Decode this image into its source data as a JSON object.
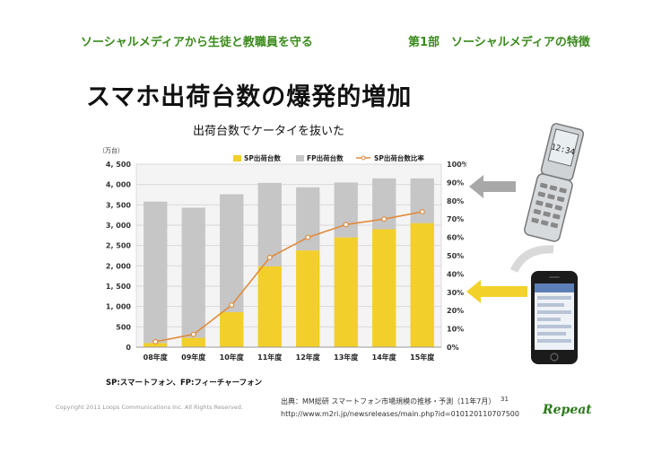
{
  "header": {
    "left": "ソーシャルメディアから生徒と教職員を守る",
    "right": "第1部　ソーシャルメディアの特徴"
  },
  "title": "スマホ出荷台数の爆発的増加",
  "subtitle": "出荷台数でケータイを抜いた",
  "footnote": "SP:スマートフォン、FP:フィーチャーフォン",
  "copyright": "Copyright 2011 Loops Communications Inc. All Rights Reserved.",
  "source_line1": "出典：MM総研 スマートフォン市場規模の推移・予測（11年7月）",
  "source_line2": "http://www.m2ri.jp/newsreleases/main.php?id=010120110707500",
  "page_number": "31",
  "logo_text": "Repeat",
  "flip_phone_clock": "12:34",
  "colors": {
    "header_green": "#3a8a1c",
    "sp_bar": "#f2cf2a",
    "fp_bar": "#c6c6c6",
    "ratio_line": "#e08a3c",
    "arrow_gray": "#a8a8a8",
    "arrow_yellow": "#f2d22a"
  },
  "chart_data": {
    "type": "bar",
    "stacked": true,
    "y_unit_label": "（万台）",
    "categories": [
      "08年度",
      "09年度",
      "10年度",
      "11年度",
      "12年度",
      "13年度",
      "14年度",
      "15年度"
    ],
    "series": [
      {
        "name": "SP出荷台数",
        "type": "bar",
        "axis": "left",
        "values": [
          100,
          230,
          860,
          1990,
          2380,
          2700,
          2900,
          3050
        ]
      },
      {
        "name": "FP出荷台数",
        "type": "bar",
        "axis": "left",
        "values": [
          3480,
          3200,
          2900,
          2050,
          1550,
          1350,
          1250,
          1100
        ]
      },
      {
        "name": "SP出荷台数比率",
        "type": "line",
        "axis": "right",
        "values": [
          3,
          7,
          23,
          49,
          60,
          67,
          70,
          74
        ]
      }
    ],
    "left_axis": {
      "ylim": [
        0,
        4500
      ],
      "ticks": [
        "0",
        "500",
        "1, 000",
        "1, 500",
        "2, 000",
        "2, 500",
        "3, 000",
        "3, 500",
        "4, 000",
        "4, 500"
      ]
    },
    "right_axis": {
      "ylim": [
        0,
        100
      ],
      "ticks": [
        "0%",
        "10%",
        "20%",
        "30%",
        "40%",
        "50%",
        "60%",
        "70%",
        "80%",
        "90%",
        "100%"
      ]
    },
    "grid": true,
    "legend_position": "top"
  }
}
